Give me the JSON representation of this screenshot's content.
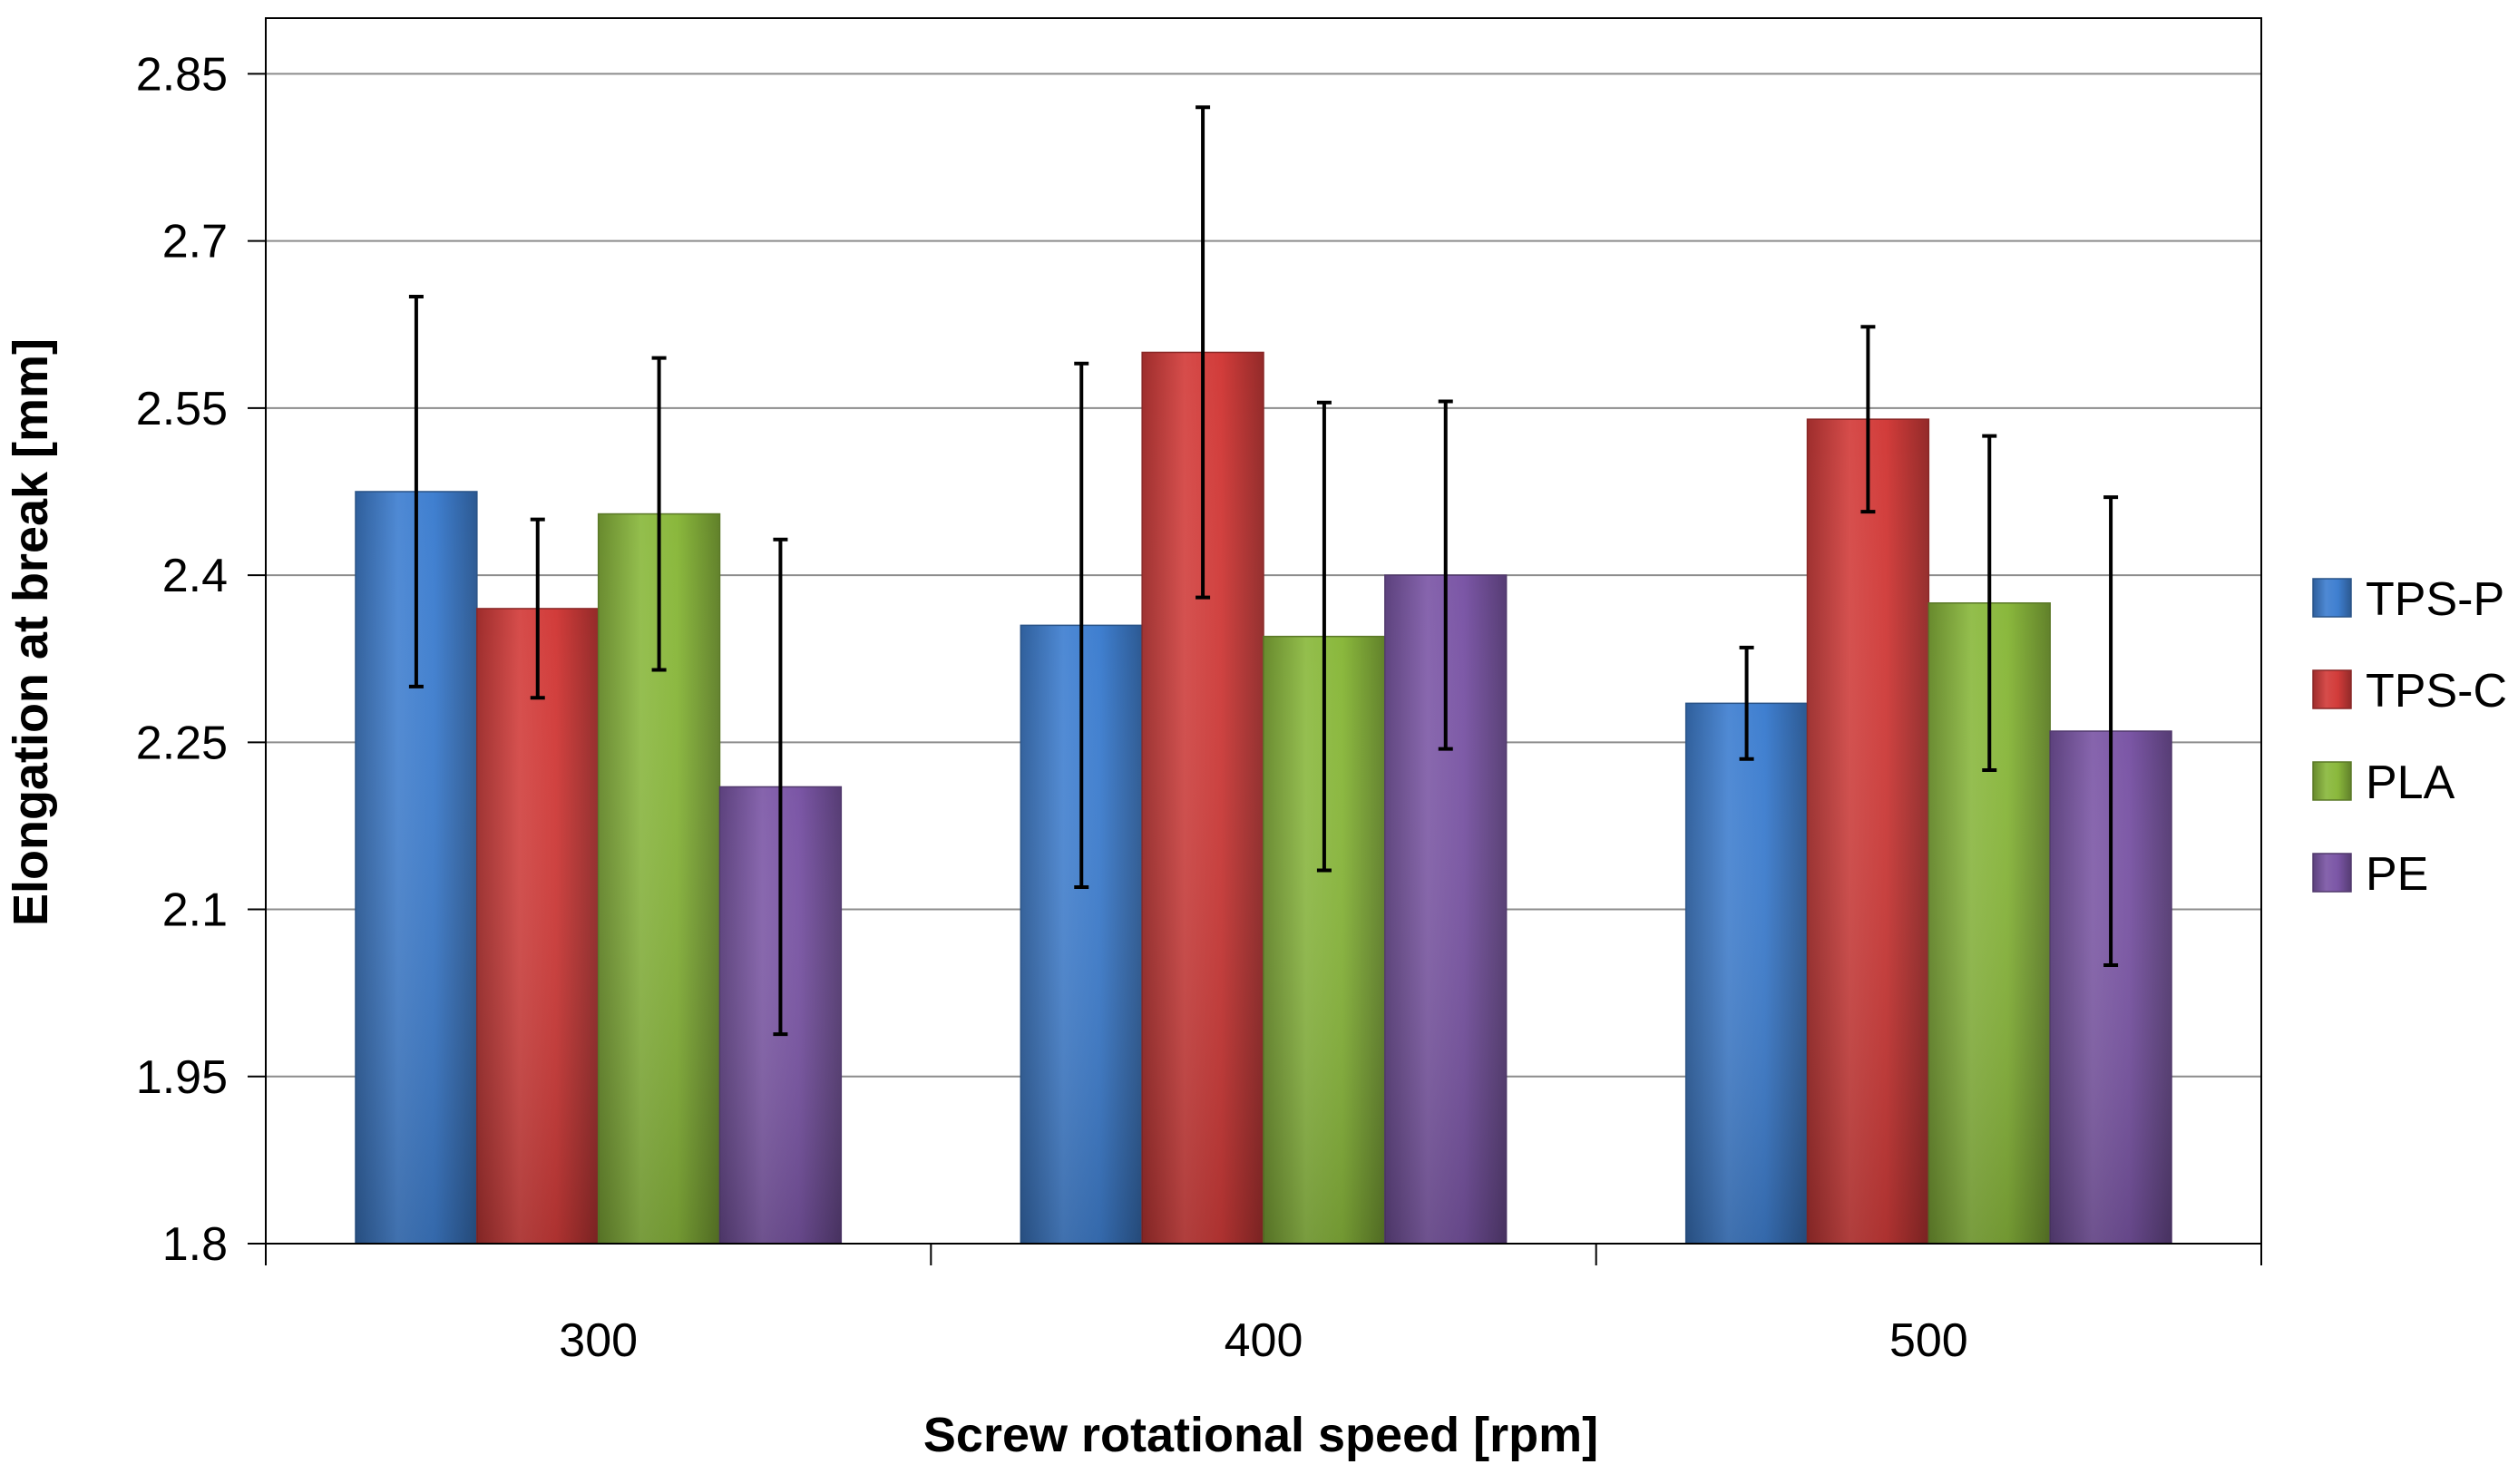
{
  "chart_data": {
    "type": "bar",
    "title": "",
    "xlabel": "Screw rotational speed [rpm]",
    "ylabel": "Elongation at break [mm]",
    "ylim": [
      1.8,
      2.9
    ],
    "yticks": [
      1.8,
      1.95,
      2.1,
      2.25,
      2.4,
      2.55,
      2.7,
      2.85
    ],
    "ytick_labels": [
      "1.8",
      "1.95",
      "2.1",
      "2.25",
      "2.4",
      "2.55",
      "2.7",
      "2.85"
    ],
    "grid": true,
    "legend_position": "right",
    "categories": [
      "300",
      "400",
      "500"
    ],
    "series": [
      {
        "name": "TPS-P",
        "color": "#3f7fd0",
        "values": [
          2.475,
          2.355,
          2.285
        ],
        "errors": [
          0.175,
          0.235,
          0.05
        ]
      },
      {
        "name": "TPS-C",
        "color": "#d23c3a",
        "values": [
          2.37,
          2.6,
          2.54
        ],
        "errors": [
          0.08,
          0.22,
          0.083
        ]
      },
      {
        "name": "PLA",
        "color": "#8ab83c",
        "values": [
          2.455,
          2.345,
          2.375
        ],
        "errors": [
          0.14,
          0.21,
          0.15
        ]
      },
      {
        "name": "PE",
        "color": "#7b56a6",
        "values": [
          2.21,
          2.4,
          2.26
        ],
        "errors": [
          0.222,
          0.156,
          0.21
        ]
      }
    ]
  }
}
